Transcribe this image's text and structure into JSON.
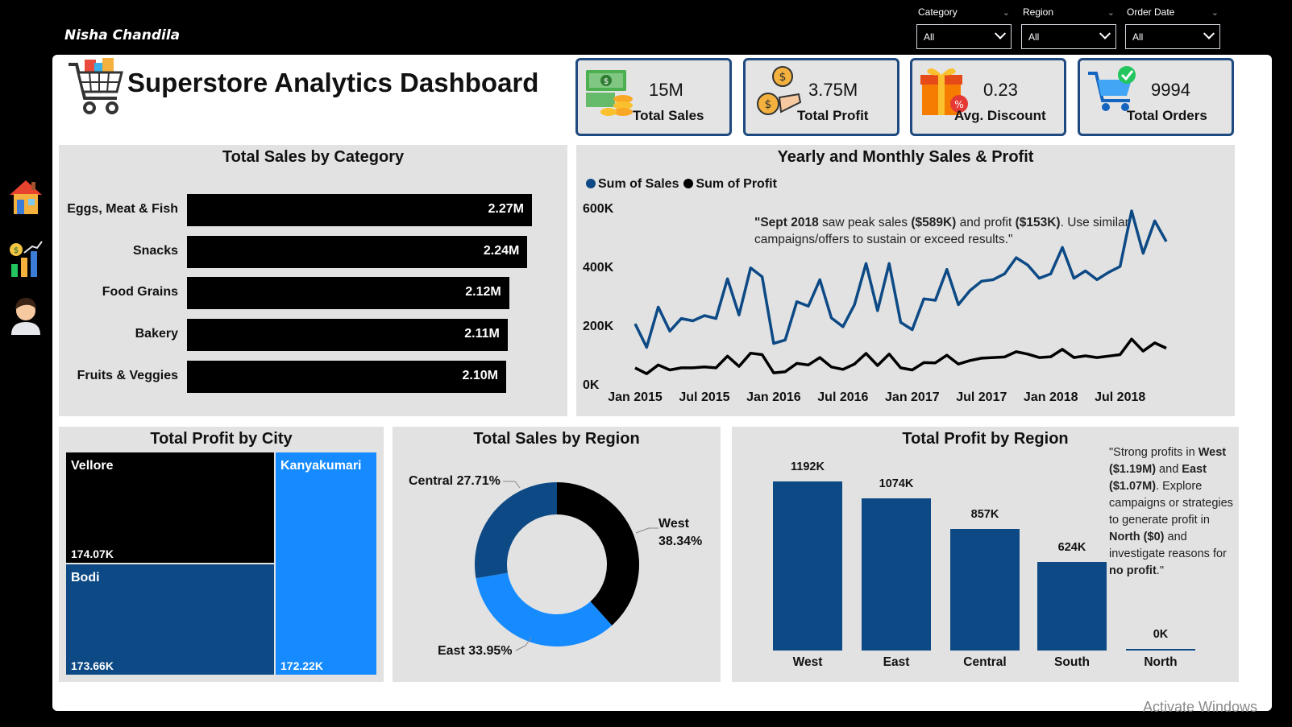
{
  "author": "Nisha Chandila",
  "filters": [
    {
      "label": "Category",
      "value": "All"
    },
    {
      "label": "Region",
      "value": "All"
    },
    {
      "label": "Order Date",
      "value": "All"
    }
  ],
  "sidebar": {
    "items": [
      {
        "icon": "home-icon"
      },
      {
        "icon": "analytics-icon"
      },
      {
        "icon": "user-avatar-icon"
      }
    ]
  },
  "header": {
    "title": "Superstore Analytics Dashboard",
    "icon": "shopping-cart-icon"
  },
  "kpis": [
    {
      "value": "15M",
      "label": "Total Sales",
      "icon": "money-stack-icon"
    },
    {
      "value": "3.75M",
      "label": "Total Profit",
      "icon": "profit-coins-icon"
    },
    {
      "value": "0.23",
      "label": "Avg. Discount",
      "icon": "gift-discount-icon"
    },
    {
      "value": "9994",
      "label": "Total Orders",
      "icon": "cart-check-icon"
    }
  ],
  "panels": {
    "category": {
      "title": "Total Sales by Category"
    },
    "trend": {
      "title": "Yearly and Monthly Sales & Profit",
      "legend": [
        "Sum of Sales",
        "Sum of Profit"
      ],
      "note_parts": {
        "a": "\"Sept 2018",
        "b": " saw peak sales ",
        "c": "($589K)",
        "d": " and profit ",
        "e": "($153K)",
        "f": ". Use similar campaigns/offers to sustain or exceed results.\""
      }
    },
    "city": {
      "title": "Total Profit by City"
    },
    "region_sales": {
      "title": "Total Sales by Region"
    },
    "region_profit": {
      "title": "Total Profit by Region",
      "note_parts": {
        "a": "\"Strong profits in ",
        "b": "West ($1.19M)",
        "c": " and ",
        "d": "East ($1.07M)",
        "e": ". Explore campaigns or strategies to generate profit in ",
        "f": "North ($0)",
        "g": " and investigate reasons for ",
        "h": "no profit",
        "i": ".\""
      }
    }
  },
  "colors": {
    "dark_blue": "#0d4a85",
    "mid_blue": "#1e5aa0",
    "bright_blue": "#168bff",
    "black": "#000000",
    "panel_bg": "#e2e2e2"
  },
  "chart_data": [
    {
      "type": "bar",
      "orientation": "horizontal",
      "title": "Total Sales by Category",
      "categories": [
        "Eggs, Meat & Fish",
        "Snacks",
        "Food Grains",
        "Bakery",
        "Fruits & Veggies"
      ],
      "values": [
        2.27,
        2.24,
        2.12,
        2.11,
        2.1
      ],
      "labels": [
        "2.27M",
        "2.24M",
        "2.12M",
        "2.11M",
        "2.10M"
      ],
      "unit": "M"
    },
    {
      "type": "line",
      "title": "Yearly and Monthly Sales & Profit",
      "xlabels": [
        "Jan 2015",
        "Jul 2015",
        "Jan 2016",
        "Jul 2016",
        "Jan 2017",
        "Jul 2017",
        "Jan 2018",
        "Jul 2018"
      ],
      "ylim": [
        0,
        600
      ],
      "yticks": [
        "0K",
        "200K",
        "400K",
        "600K"
      ],
      "series": [
        {
          "name": "Sum of Sales",
          "color": "#0d4a85",
          "values": [
            205,
            125,
            262,
            180,
            223,
            215,
            233,
            223,
            358,
            235,
            395,
            365,
            138,
            150,
            280,
            265,
            355,
            225,
            195,
            270,
            410,
            250,
            410,
            210,
            185,
            290,
            285,
            390,
            270,
            318,
            350,
            355,
            375,
            430,
            405,
            360,
            375,
            465,
            360,
            385,
            355,
            380,
            400,
            589,
            445,
            555,
            485
          ]
        },
        {
          "name": "Sum of Profit",
          "color": "#000000",
          "values": [
            55,
            35,
            65,
            48,
            55,
            55,
            58,
            55,
            95,
            60,
            105,
            100,
            38,
            42,
            70,
            65,
            90,
            58,
            50,
            68,
            104,
            63,
            102,
            55,
            48,
            73,
            72,
            98,
            68,
            80,
            88,
            90,
            92,
            110,
            102,
            90,
            93,
            118,
            90,
            96,
            90,
            95,
            100,
            153,
            112,
            140,
            122
          ]
        }
      ]
    },
    {
      "type": "treemap",
      "title": "Total Profit by City",
      "items": [
        {
          "name": "Vellore",
          "value": 174.07,
          "label": "174.07K"
        },
        {
          "name": "Bodi",
          "value": 173.66,
          "label": "173.66K"
        },
        {
          "name": "Kanyakumari",
          "value": 172.22,
          "label": "172.22K"
        }
      ]
    },
    {
      "type": "pie",
      "title": "Total Sales by Region",
      "slices": [
        {
          "name": "West",
          "value": 38.34,
          "label": "West 38.34%",
          "color": "#000000"
        },
        {
          "name": "East",
          "value": 33.95,
          "label": "East 33.95%",
          "color": "#168bff"
        },
        {
          "name": "Central",
          "value": 27.71,
          "label": "Central 27.71%",
          "color": "#0d4a85"
        }
      ]
    },
    {
      "type": "bar",
      "title": "Total Profit by Region",
      "categories": [
        "West",
        "East",
        "Central",
        "South",
        "North"
      ],
      "values": [
        1192,
        1074,
        857,
        624,
        0
      ],
      "labels": [
        "1192K",
        "1074K",
        "857K",
        "624K",
        "0K"
      ]
    }
  ],
  "watermark": "Activate Windows"
}
